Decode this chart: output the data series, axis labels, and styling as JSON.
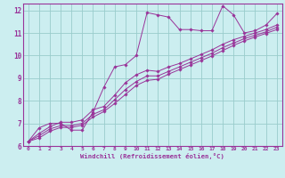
{
  "bg_color": "#cceef0",
  "line_color": "#993399",
  "grid_color": "#99cccc",
  "xlabel": "Windchill (Refroidissement éolien,°C)",
  "xlim": [
    -0.5,
    23.5
  ],
  "ylim": [
    6,
    12.3
  ],
  "yticks": [
    6,
    7,
    8,
    9,
    10,
    11,
    12
  ],
  "xticks": [
    0,
    1,
    2,
    3,
    4,
    5,
    6,
    7,
    8,
    9,
    10,
    11,
    12,
    13,
    14,
    15,
    16,
    17,
    18,
    19,
    20,
    21,
    22,
    23
  ],
  "lines": [
    {
      "x": [
        0,
        1,
        2,
        3,
        4,
        5,
        6,
        7,
        8,
        9,
        10,
        11,
        12,
        13,
        14,
        15,
        16,
        17,
        18,
        19,
        20,
        21,
        22,
        23
      ],
      "y": [
        6.2,
        6.8,
        7.0,
        7.0,
        6.7,
        6.7,
        7.5,
        8.6,
        9.5,
        9.6,
        10.0,
        11.9,
        11.8,
        11.7,
        11.15,
        11.15,
        11.1,
        11.1,
        12.2,
        11.8,
        11.0,
        11.1,
        11.35,
        11.85
      ]
    },
    {
      "x": [
        0,
        1,
        2,
        3,
        4,
        5,
        6,
        7,
        8,
        9,
        10,
        11,
        12,
        13,
        14,
        15,
        16,
        17,
        18,
        19,
        20,
        21,
        22,
        23
      ],
      "y": [
        6.2,
        6.55,
        6.85,
        7.05,
        7.05,
        7.15,
        7.6,
        7.75,
        8.25,
        8.8,
        9.15,
        9.35,
        9.3,
        9.5,
        9.65,
        9.85,
        10.05,
        10.25,
        10.5,
        10.7,
        10.85,
        11.0,
        11.15,
        11.35
      ]
    },
    {
      "x": [
        0,
        1,
        2,
        3,
        4,
        5,
        6,
        7,
        8,
        9,
        10,
        11,
        12,
        13,
        14,
        15,
        16,
        17,
        18,
        19,
        20,
        21,
        22,
        23
      ],
      "y": [
        6.2,
        6.45,
        6.75,
        6.9,
        6.9,
        7.0,
        7.4,
        7.6,
        8.05,
        8.5,
        8.85,
        9.1,
        9.1,
        9.3,
        9.5,
        9.7,
        9.9,
        10.1,
        10.35,
        10.55,
        10.75,
        10.9,
        11.05,
        11.25
      ]
    },
    {
      "x": [
        0,
        1,
        2,
        3,
        4,
        5,
        6,
        7,
        8,
        9,
        10,
        11,
        12,
        13,
        14,
        15,
        16,
        17,
        18,
        19,
        20,
        21,
        22,
        23
      ],
      "y": [
        6.2,
        6.35,
        6.65,
        6.82,
        6.82,
        6.92,
        7.28,
        7.52,
        7.88,
        8.28,
        8.68,
        8.9,
        8.95,
        9.18,
        9.38,
        9.58,
        9.78,
        9.98,
        10.22,
        10.45,
        10.65,
        10.82,
        10.98,
        11.15
      ]
    }
  ]
}
